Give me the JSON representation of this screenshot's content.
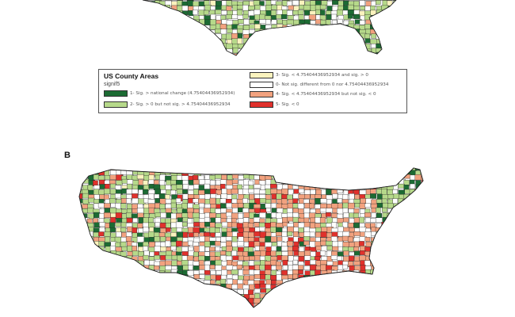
{
  "panel_b_label": "B",
  "legend": {
    "title": "US County Areas",
    "field": "signif5",
    "items": [
      {
        "label": "1- Sig. > national change (4.75404436952934)",
        "color": "#1c6b33"
      },
      {
        "label": "2- Sig. > 0 but not sig. > 4.75404436952934",
        "color": "#b6d98a"
      },
      {
        "label": "3- Sig. < 4.75404436952934 and sig. > 0",
        "color": "#fbf3be"
      },
      {
        "label": "0- Not sig. different from 0 nor 4.75404436952934",
        "color": "#ffffff"
      },
      {
        "label": "4- Sig. < 4.75404436952934 but not sig. < 0",
        "color": "#f2a27f"
      },
      {
        "label": "5- Sig. < 0",
        "color": "#e0312c"
      }
    ]
  },
  "map_colors": {
    "border": "#222222",
    "class_1": "#1c6b33",
    "class_2": "#b6d98a",
    "class_3": "#fbf3be",
    "class_0": "#ffffff",
    "class_4": "#f2a27f",
    "class_5": "#e0312c"
  }
}
